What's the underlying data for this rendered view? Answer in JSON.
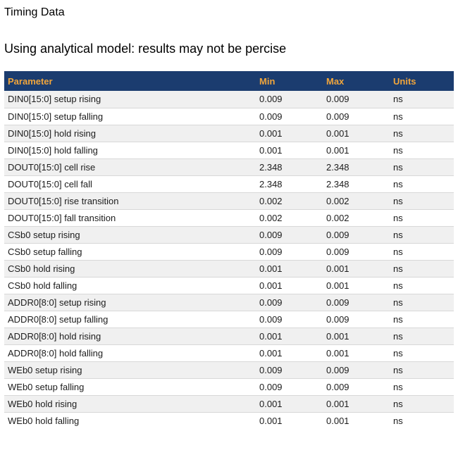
{
  "page": {
    "title": "Timing Data",
    "subtitle": "Using analytical model: results may not be percise"
  },
  "table": {
    "columns": [
      "Parameter",
      "Min",
      "Max",
      "Units"
    ],
    "rows": [
      {
        "parameter": "DIN0[15:0] setup rising",
        "min": "0.009",
        "max": "0.009",
        "units": "ns"
      },
      {
        "parameter": "DIN0[15:0] setup falling",
        "min": "0.009",
        "max": "0.009",
        "units": "ns"
      },
      {
        "parameter": "DIN0[15:0] hold rising",
        "min": "0.001",
        "max": "0.001",
        "units": "ns"
      },
      {
        "parameter": "DIN0[15:0] hold falling",
        "min": "0.001",
        "max": "0.001",
        "units": "ns"
      },
      {
        "parameter": "DOUT0[15:0] cell rise",
        "min": "2.348",
        "max": "2.348",
        "units": "ns"
      },
      {
        "parameter": "DOUT0[15:0] cell fall",
        "min": "2.348",
        "max": "2.348",
        "units": "ns"
      },
      {
        "parameter": "DOUT0[15:0] rise transition",
        "min": "0.002",
        "max": "0.002",
        "units": "ns"
      },
      {
        "parameter": "DOUT0[15:0] fall transition",
        "min": "0.002",
        "max": "0.002",
        "units": "ns"
      },
      {
        "parameter": "CSb0 setup rising",
        "min": "0.009",
        "max": "0.009",
        "units": "ns"
      },
      {
        "parameter": "CSb0 setup falling",
        "min": "0.009",
        "max": "0.009",
        "units": "ns"
      },
      {
        "parameter": "CSb0 hold rising",
        "min": "0.001",
        "max": "0.001",
        "units": "ns"
      },
      {
        "parameter": "CSb0 hold falling",
        "min": "0.001",
        "max": "0.001",
        "units": "ns"
      },
      {
        "parameter": "ADDR0[8:0] setup rising",
        "min": "0.009",
        "max": "0.009",
        "units": "ns"
      },
      {
        "parameter": "ADDR0[8:0] setup falling",
        "min": "0.009",
        "max": "0.009",
        "units": "ns"
      },
      {
        "parameter": "ADDR0[8:0] hold rising",
        "min": "0.001",
        "max": "0.001",
        "units": "ns"
      },
      {
        "parameter": "ADDR0[8:0] hold falling",
        "min": "0.001",
        "max": "0.001",
        "units": "ns"
      },
      {
        "parameter": "WEb0 setup rising",
        "min": "0.009",
        "max": "0.009",
        "units": "ns"
      },
      {
        "parameter": "WEb0 setup falling",
        "min": "0.009",
        "max": "0.009",
        "units": "ns"
      },
      {
        "parameter": "WEb0 hold rising",
        "min": "0.001",
        "max": "0.001",
        "units": "ns"
      },
      {
        "parameter": "WEb0 hold falling",
        "min": "0.001",
        "max": "0.001",
        "units": "ns"
      }
    ]
  },
  "colors": {
    "header_bg": "#1b3c6f",
    "header_text": "#f0a53c",
    "row_alt_bg": "#f0f0f0",
    "row_bg": "#ffffff",
    "row_border": "#d8d8d8",
    "text": "#1c1c1c"
  }
}
